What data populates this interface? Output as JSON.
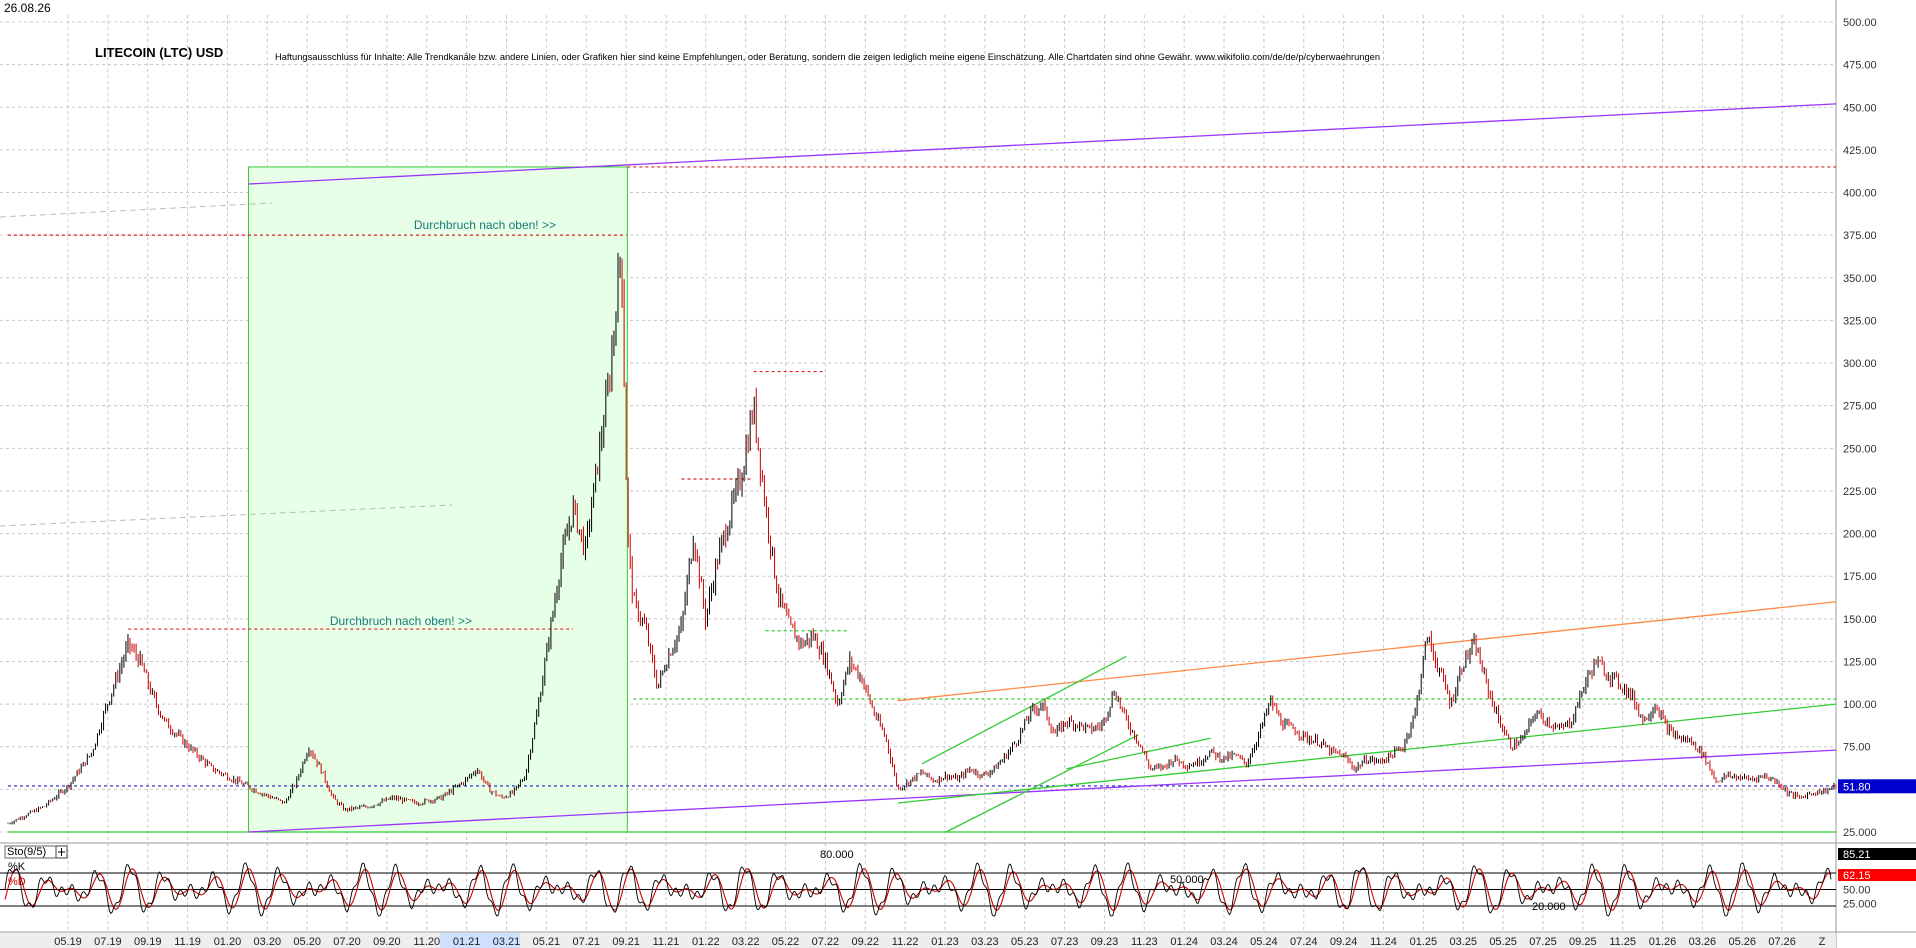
{
  "date": "26.08.26",
  "title": "LITECOIN (LTC) USD",
  "disclaimer": "Haftungsausschluss für Inhalte: Alle Trendkanäle bzw. andere Linien, oder Grafiken hier sind keine Empfehlungen, oder Beratung, sondern die zeigen lediglich meine eigene Einschätzung. Alle Chartdaten sind ohne Gewähr. www.wikifolio.com/de/de/p/cyberwaehrungen",
  "annotations": [
    "Durchbruch nach oben! >>",
    "Durchbruch nach oben! >>"
  ],
  "colors": {
    "price_up": "#000000",
    "price_down": "#cc0000",
    "green_line": "#33cc33",
    "purple_line": "#9933ff",
    "orange_line": "#ff8844",
    "red_dotted": "#dd2222",
    "blue_dotted": "#2222cc",
    "highlight_fill": "#e6ffe6"
  },
  "chart_data": [
    {
      "type": "candlestick",
      "title": "LITECOIN (LTC) USD",
      "ylim": [
        25,
        510
      ],
      "y_ticks": [
        "500.00",
        "475.00",
        "450.00",
        "425.00",
        "400.00",
        "375.00",
        "350.00",
        "325.00",
        "300.00",
        "275.00",
        "250.00",
        "225.00",
        "200.00",
        "175.00",
        "150.00",
        "125.00",
        "100.00",
        "75.00",
        "50.00",
        "25.000"
      ],
      "last_price": "51.80",
      "x_ticks": [
        "05.19",
        "07.19",
        "09.19",
        "11.19",
        "01.20",
        "03.20",
        "05.20",
        "07.20",
        "09.20",
        "11.20",
        "01.21",
        "03.21",
        "05.21",
        "07.21",
        "09.21",
        "11.21",
        "01.22",
        "03.22",
        "05.22",
        "07.22",
        "09.22",
        "11.22",
        "01.23",
        "03.23",
        "05.23",
        "07.23",
        "09.23",
        "11.23",
        "01.24",
        "03.24",
        "05.24",
        "07.24",
        "09.24",
        "11.24",
        "01.25",
        "03.25",
        "05.25",
        "07.25",
        "09.25",
        "11.25",
        "01.26",
        "03.26",
        "05.26",
        "07.26",
        "Z"
      ],
      "price_path": [
        [
          0,
          30
        ],
        [
          3,
          40
        ],
        [
          5,
          52
        ],
        [
          7,
          72
        ],
        [
          8,
          95
        ],
        [
          9,
          115
        ],
        [
          10,
          135
        ],
        [
          11,
          125
        ],
        [
          12,
          105
        ],
        [
          13,
          90
        ],
        [
          15,
          75
        ],
        [
          17,
          62
        ],
        [
          19,
          55
        ],
        [
          21,
          48
        ],
        [
          23,
          42
        ],
        [
          24,
          55
        ],
        [
          25,
          75
        ],
        [
          26,
          62
        ],
        [
          27,
          45
        ],
        [
          28,
          38
        ],
        [
          30,
          40
        ],
        [
          32,
          45
        ],
        [
          34,
          42
        ],
        [
          36,
          45
        ],
        [
          38,
          55
        ],
        [
          39,
          62
        ],
        [
          40,
          50
        ],
        [
          41,
          45
        ],
        [
          42,
          48
        ],
        [
          43,
          58
        ],
        [
          44,
          95
        ],
        [
          45,
          140
        ],
        [
          46,
          185
        ],
        [
          47,
          215
        ],
        [
          48,
          190
        ],
        [
          49,
          240
        ],
        [
          50,
          290
        ],
        [
          51,
          370
        ],
        [
          51.5,
          200
        ],
        [
          52,
          160
        ],
        [
          53,
          145
        ],
        [
          54,
          110
        ],
        [
          55,
          130
        ],
        [
          56,
          145
        ],
        [
          57,
          200
        ],
        [
          58,
          150
        ],
        [
          59,
          185
        ],
        [
          60,
          210
        ],
        [
          61,
          235
        ],
        [
          62,
          275
        ],
        [
          63,
          215
        ],
        [
          64,
          165
        ],
        [
          65,
          145
        ],
        [
          66,
          135
        ],
        [
          67,
          140
        ],
        [
          68,
          125
        ],
        [
          69,
          100
        ],
        [
          70,
          125
        ],
        [
          71,
          115
        ],
        [
          72,
          95
        ],
        [
          73,
          80
        ],
        [
          74,
          50
        ],
        [
          75,
          55
        ],
        [
          76,
          60
        ],
        [
          77,
          55
        ],
        [
          78,
          58
        ],
        [
          79,
          56
        ],
        [
          80,
          62
        ],
        [
          81,
          58
        ],
        [
          82,
          62
        ],
        [
          83,
          70
        ],
        [
          84,
          80
        ],
        [
          85,
          95
        ],
        [
          86,
          100
        ],
        [
          87,
          82
        ],
        [
          88,
          90
        ],
        [
          89,
          88
        ],
        [
          90,
          85
        ],
        [
          91,
          88
        ],
        [
          92,
          108
        ],
        [
          93,
          90
        ],
        [
          94,
          78
        ],
        [
          95,
          62
        ],
        [
          96,
          63
        ],
        [
          97,
          68
        ],
        [
          98,
          64
        ],
        [
          99,
          66
        ],
        [
          100,
          72
        ],
        [
          101,
          68
        ],
        [
          102,
          70
        ],
        [
          103,
          65
        ],
        [
          104,
          82
        ],
        [
          105,
          102
        ],
        [
          106,
          88
        ],
        [
          107,
          85
        ],
        [
          108,
          80
        ],
        [
          109,
          78
        ],
        [
          110,
          72
        ],
        [
          111,
          70
        ],
        [
          112,
          62
        ],
        [
          113,
          68
        ],
        [
          114,
          66
        ],
        [
          115,
          70
        ],
        [
          116,
          75
        ],
        [
          117,
          95
        ],
        [
          118,
          140
        ],
        [
          119,
          120
        ],
        [
          120,
          100
        ],
        [
          121,
          125
        ],
        [
          122,
          135
        ],
        [
          123,
          110
        ],
        [
          124,
          90
        ],
        [
          125,
          75
        ],
        [
          126,
          80
        ],
        [
          127,
          95
        ],
        [
          128,
          90
        ],
        [
          129,
          85
        ],
        [
          130,
          90
        ],
        [
          131,
          110
        ],
        [
          132,
          125
        ],
        [
          133,
          118
        ],
        [
          134,
          112
        ],
        [
          135,
          105
        ],
        [
          136,
          90
        ],
        [
          137,
          100
        ],
        [
          138,
          85
        ],
        [
          139,
          80
        ],
        [
          140,
          78
        ],
        [
          141,
          70
        ],
        [
          142,
          55
        ],
        [
          143,
          58
        ],
        [
          144,
          57
        ],
        [
          145,
          56
        ],
        [
          146,
          58
        ],
        [
          147,
          55
        ],
        [
          148,
          48
        ],
        [
          149,
          45
        ],
        [
          150,
          48
        ],
        [
          151,
          49
        ],
        [
          152,
          51.8
        ]
      ],
      "rectangle": {
        "x_start": 20,
        "x_end": 51.5,
        "y_low": 25,
        "y_high": 415
      },
      "trendlines": [
        {
          "name": "upper-channel-purple",
          "points": [
            [
              20,
              405
            ],
            [
              152,
              452
            ]
          ]
        },
        {
          "name": "lower-channel-purple",
          "points": [
            [
              20,
              25
            ],
            [
              152,
              73
            ]
          ]
        },
        {
          "name": "orange-resistance",
          "points": [
            [
              74,
              102
            ],
            [
              152,
              160
            ]
          ]
        },
        {
          "name": "green-support",
          "points": [
            [
              74,
              42
            ],
            [
              152,
              100
            ]
          ]
        },
        {
          "name": "green-channel-upper",
          "points": [
            [
              76,
              65
            ],
            [
              93,
              128
            ]
          ]
        },
        {
          "name": "green-channel-lower",
          "points": [
            [
              78,
              25
            ],
            [
              94,
              82
            ]
          ]
        },
        {
          "name": "green-short",
          "points": [
            [
              88,
              62
            ],
            [
              100,
              80
            ]
          ]
        }
      ],
      "horizontal_levels": [
        {
          "name": "red-415",
          "y": 415,
          "x_start": 51.5,
          "x_end": 152,
          "style": "red-dotted"
        },
        {
          "name": "red-375",
          "y": 375,
          "x_start": 0,
          "x_end": 51.5,
          "style": "red-dotted"
        },
        {
          "name": "red-295",
          "y": 295,
          "x_start": 62,
          "x_end": 68,
          "style": "red-dotted"
        },
        {
          "name": "red-232",
          "y": 232,
          "x_start": 56,
          "x_end": 62,
          "style": "red-dotted"
        },
        {
          "name": "red-144",
          "y": 144,
          "x_start": 10,
          "x_end": 47,
          "style": "red-dotted"
        },
        {
          "name": "green-143",
          "y": 143,
          "x_start": 63,
          "x_end": 70,
          "style": "green-dotted"
        },
        {
          "name": "green-103",
          "y": 103,
          "x_start": 52,
          "x_end": 152,
          "style": "green-dotted"
        },
        {
          "name": "blue-52",
          "y": 52,
          "x_start": 0,
          "x_end": 152,
          "style": "blue-dotted"
        },
        {
          "name": "green-25",
          "y": 25,
          "x_start": 0,
          "x_end": 152,
          "style": "green-solid"
        }
      ]
    },
    {
      "type": "line",
      "title": "Sto(9/5)",
      "series": [
        {
          "name": "%K",
          "last": "85.21"
        },
        {
          "name": "%D",
          "last": "62.15"
        }
      ],
      "ylim": [
        0,
        100
      ],
      "levels": [
        "80.000",
        "50.000",
        "20.000"
      ],
      "y_ticks": [
        "50.00",
        "25.000"
      ]
    }
  ]
}
